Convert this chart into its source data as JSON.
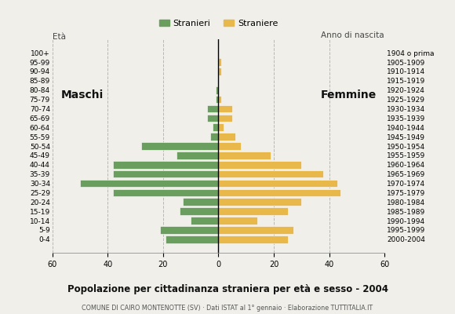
{
  "title": "Popolazione per cittadinanza straniera per età e sesso - 2004",
  "subtitle": "COMUNE DI CAIRO MONTENOTTE (SV) · Dati ISTAT al 1° gennaio · Elaborazione TUTTITALIA.IT",
  "legend_male": "Stranieri",
  "legend_female": "Straniere",
  "color_male": "#6a9e5e",
  "color_female": "#e8b84b",
  "background_color": "#f0efea",
  "age_groups": [
    "0-4",
    "5-9",
    "10-14",
    "15-19",
    "20-24",
    "25-29",
    "30-34",
    "35-39",
    "40-44",
    "45-49",
    "50-54",
    "55-59",
    "60-64",
    "65-69",
    "70-74",
    "75-79",
    "80-84",
    "85-89",
    "90-94",
    "95-99",
    "100+"
  ],
  "birth_years": [
    "2000-2004",
    "1995-1999",
    "1990-1994",
    "1985-1989",
    "1980-1984",
    "1975-1979",
    "1970-1974",
    "1965-1969",
    "1960-1964",
    "1955-1959",
    "1950-1954",
    "1945-1949",
    "1940-1944",
    "1935-1939",
    "1930-1934",
    "1925-1929",
    "1920-1924",
    "1915-1919",
    "1910-1914",
    "1905-1909",
    "1904 o prima"
  ],
  "males": [
    19,
    21,
    10,
    14,
    13,
    38,
    50,
    38,
    38,
    15,
    28,
    3,
    2,
    4,
    4,
    1,
    1,
    0,
    0,
    0,
    0
  ],
  "females": [
    25,
    27,
    14,
    25,
    30,
    44,
    43,
    38,
    30,
    19,
    8,
    6,
    2,
    5,
    5,
    1,
    0,
    0,
    1,
    1,
    0
  ],
  "xlim": 60,
  "label_maschi": "Maschi",
  "label_femmine": "Femmine",
  "axis_label_eta": "Età",
  "axis_label_anno": "Anno di nascita"
}
